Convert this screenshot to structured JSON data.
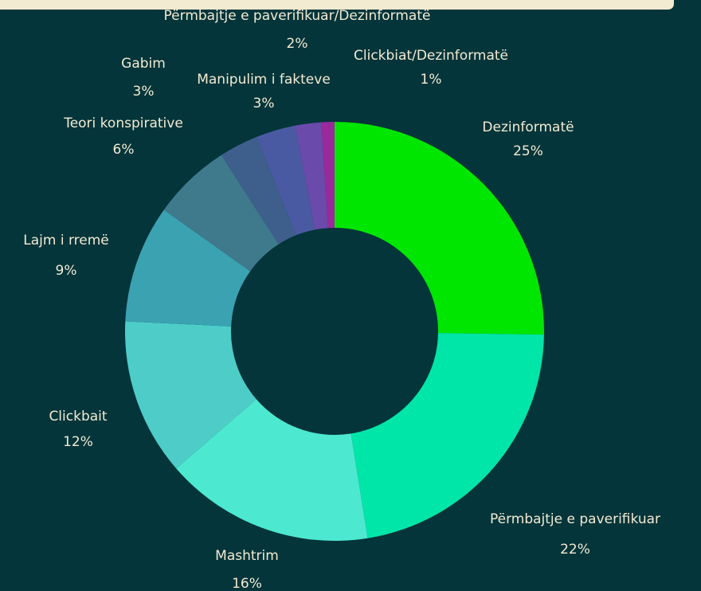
{
  "chart_data": {
    "type": "donut",
    "categories": [
      "Dezinformatë",
      "Përmbajtje e paverifikuar",
      "Mashtrim",
      "Clickbait",
      "Lajm i rremë",
      "Teori konspirative",
      "Gabim",
      "Manipulim i fakteve",
      "Përmbajtje e paverifikuar/Dezinformatë",
      "Clickbiat/Dezinformatë"
    ],
    "values": [
      25,
      22,
      16,
      12,
      9,
      6,
      3,
      3,
      2,
      1
    ],
    "value_labels": [
      "25%",
      "22%",
      "16%",
      "12%",
      "9%",
      "6%",
      "3%",
      "3%",
      "2%",
      "1%"
    ],
    "colors": [
      "#00e600",
      "#00e6a8",
      "#4de8d0",
      "#4ecdc8",
      "#3ba2b2",
      "#3f7a8c",
      "#3e5f8c",
      "#4a5aa2",
      "#6a4aaa",
      "#9a2a9c"
    ]
  }
}
